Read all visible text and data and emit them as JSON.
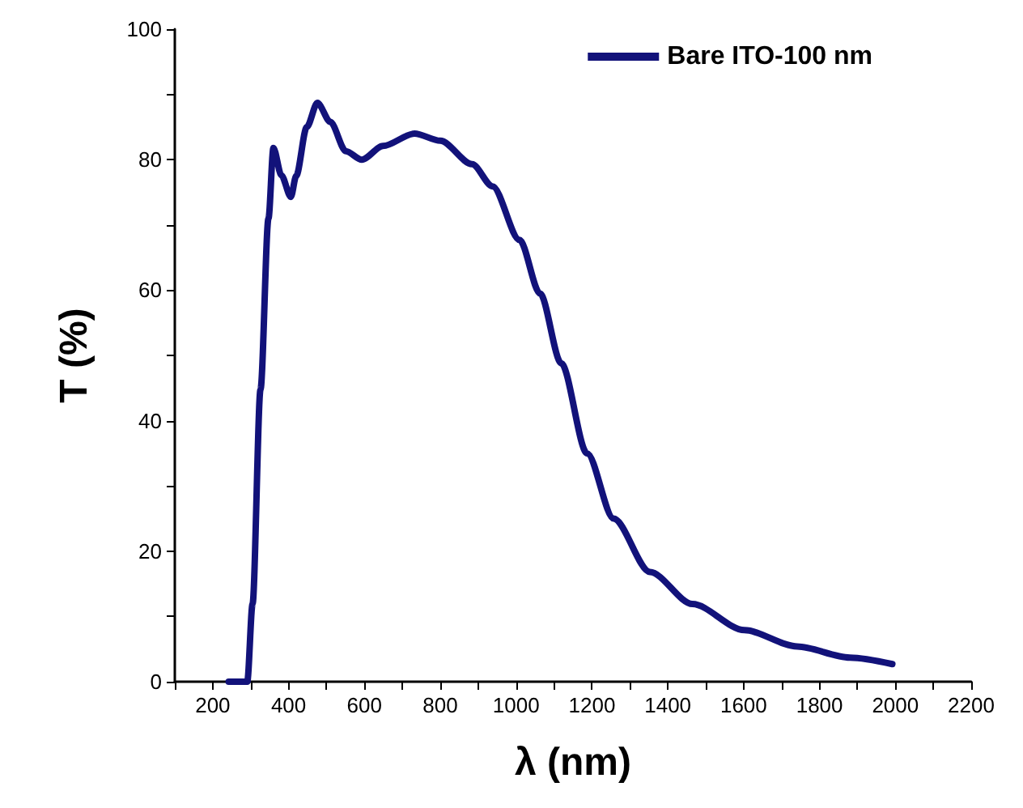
{
  "chart_data": {
    "type": "line",
    "xlabel": "λ (nm)",
    "ylabel": "T (%)",
    "xlim": [
      100,
      2200
    ],
    "xticks": [
      {
        "value": 100,
        "label": null
      },
      200,
      {
        "value": 300,
        "label": null
      },
      400,
      {
        "value": 500,
        "label": null
      },
      600,
      {
        "value": 700,
        "label": null
      },
      800,
      {
        "value": 900,
        "label": null
      },
      1000,
      {
        "value": 1100,
        "label": null
      },
      1200,
      {
        "value": 1300,
        "label": null
      },
      1400,
      {
        "value": 1500,
        "label": null
      },
      1600,
      {
        "value": 1700,
        "label": null
      },
      1800,
      {
        "value": 1900,
        "label": null
      },
      2000,
      {
        "value": 2100,
        "label": null
      },
      2200
    ],
    "ylim": [
      0,
      100
    ],
    "yticks": [
      0,
      {
        "value": 10,
        "label": null
      },
      20,
      {
        "value": 30,
        "label": null
      },
      40,
      {
        "value": 50,
        "label": null
      },
      60,
      {
        "value": 70,
        "label": null
      },
      80,
      {
        "value": 90,
        "label": null
      },
      100
    ],
    "grid": false,
    "legend": "top right",
    "marker": "none",
    "line_style": "solid",
    "x": [
      242,
      291,
      305,
      326,
      347,
      360,
      381,
      406,
      420,
      448,
      476,
      510,
      551,
      593,
      649,
      732,
      800,
      884,
      938,
      1009,
      1063,
      1119,
      1187,
      1257,
      1353,
      1465,
      1602,
      1741,
      1880,
      1992
    ],
    "series": [
      {
        "name": "Bare ITO-100 nm",
        "color": "#12127a",
        "values": [
          0,
          0,
          11.9,
          44.8,
          71,
          81.8,
          77.6,
          74.3,
          77.5,
          85,
          88.7,
          85.8,
          81.3,
          80,
          82.1,
          84,
          82.9,
          79.3,
          75.9,
          67.7,
          59.5,
          48.8,
          35,
          25,
          16.8,
          11.9,
          7.9,
          5.4,
          3.7,
          2.7
        ]
      }
    ]
  }
}
